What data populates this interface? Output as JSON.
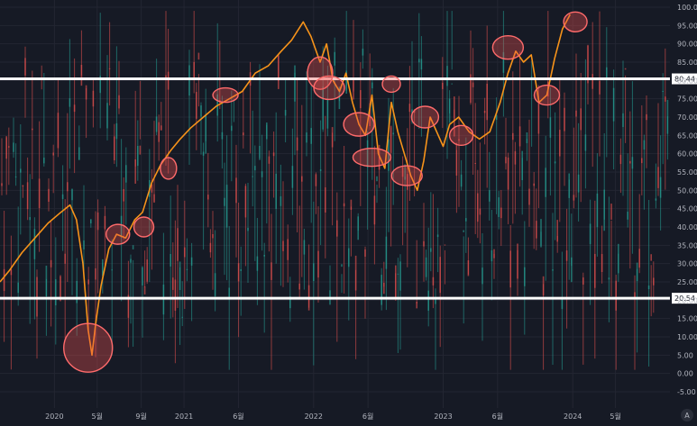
{
  "chart_data": {
    "type": "line",
    "title": "",
    "xlabel": "",
    "ylabel": "",
    "ylim": [
      -5,
      100
    ],
    "y_ticks": [
      "100.00",
      "95.00",
      "90.00",
      "85.00",
      "80.00",
      "75.00",
      "70.00",
      "65.00",
      "60.00",
      "55.00",
      "50.00",
      "45.00",
      "40.00",
      "35.00",
      "30.00",
      "25.00",
      "20.00",
      "15.00",
      "10.00",
      "5.00",
      "0.00",
      "-5.00"
    ],
    "x_ticks": [
      {
        "label": "2020",
        "t": 2020.0
      },
      {
        "label": "5월",
        "t": 2020.33
      },
      {
        "label": "9월",
        "t": 2020.67
      },
      {
        "label": "2021",
        "t": 2021.0
      },
      {
        "label": "6월",
        "t": 2021.42
      },
      {
        "label": "2022",
        "t": 2022.0
      },
      {
        "label": "6월",
        "t": 2022.42
      },
      {
        "label": "2023",
        "t": 2023.0
      },
      {
        "label": "6월",
        "t": 2023.42
      },
      {
        "label": "2024",
        "t": 2024.0
      },
      {
        "label": "5월",
        "t": 2024.33
      }
    ],
    "xlim": [
      2019.58,
      2024.75
    ],
    "levels": [
      {
        "label": "80.44",
        "value": 80.44,
        "color": "#ffffff"
      },
      {
        "label": "20.54",
        "value": 20.54,
        "color": "#ffffff"
      }
    ],
    "series": [
      {
        "color": "#f7931a",
        "x": [
          2019.58,
          2019.65,
          2019.75,
          2019.85,
          2019.95,
          2020.05,
          2020.12,
          2020.17,
          2020.22,
          2020.26,
          2020.29,
          2020.32,
          2020.36,
          2020.42,
          2020.48,
          2020.55,
          2020.62,
          2020.68,
          2020.75,
          2020.82,
          2020.9,
          2020.97,
          2021.05,
          2021.15,
          2021.25,
          2021.35,
          2021.45,
          2021.55,
          2021.65,
          2021.75,
          2021.83,
          2021.92,
          2021.98,
          2022.05,
          2022.1,
          2022.15,
          2022.2,
          2022.25,
          2022.3,
          2022.35,
          2022.4,
          2022.45,
          2022.5,
          2022.55,
          2022.6,
          2022.65,
          2022.7,
          2022.75,
          2022.8,
          2022.85,
          2022.9,
          2022.95,
          2023.0,
          2023.05,
          2023.12,
          2023.2,
          2023.28,
          2023.36,
          2023.44,
          2023.5,
          2023.56,
          2023.62,
          2023.68,
          2023.74,
          2023.8,
          2023.86,
          2023.92,
          2023.98
        ],
        "y": [
          25,
          28,
          33,
          37,
          41,
          44,
          46,
          42,
          30,
          12,
          5,
          14,
          24,
          34,
          38,
          37,
          42,
          44,
          52,
          57,
          61,
          64,
          67,
          70,
          73,
          75,
          77,
          82,
          84,
          88,
          91,
          96,
          92,
          85,
          90,
          80,
          77,
          82,
          74,
          68,
          65,
          76,
          60,
          56,
          74,
          66,
          60,
          54,
          50,
          58,
          70,
          66,
          62,
          68,
          70,
          66,
          64,
          66,
          74,
          82,
          88,
          85,
          87,
          74,
          76,
          86,
          94,
          98
        ]
      }
    ],
    "annotations": [
      {
        "x": 2020.26,
        "y": 7,
        "kind": "circle"
      },
      {
        "x": 2020.49,
        "y": 38,
        "kind": "circle"
      },
      {
        "x": 2020.69,
        "y": 40,
        "kind": "circle"
      },
      {
        "x": 2020.88,
        "y": 56,
        "kind": "circle"
      },
      {
        "x": 2021.32,
        "y": 76,
        "kind": "circle"
      },
      {
        "x": 2022.05,
        "y": 82,
        "kind": "circle"
      },
      {
        "x": 2022.12,
        "y": 78,
        "kind": "circle"
      },
      {
        "x": 2022.35,
        "y": 68,
        "kind": "circle"
      },
      {
        "x": 2022.45,
        "y": 59,
        "kind": "circle"
      },
      {
        "x": 2022.6,
        "y": 79,
        "kind": "circle"
      },
      {
        "x": 2022.72,
        "y": 54,
        "kind": "circle"
      },
      {
        "x": 2022.86,
        "y": 70,
        "kind": "circle"
      },
      {
        "x": 2023.14,
        "y": 65,
        "kind": "circle"
      },
      {
        "x": 2023.5,
        "y": 89,
        "kind": "circle"
      },
      {
        "x": 2023.8,
        "y": 76,
        "kind": "circle"
      },
      {
        "x": 2024.02,
        "y": 96,
        "kind": "circle"
      }
    ]
  }
}
